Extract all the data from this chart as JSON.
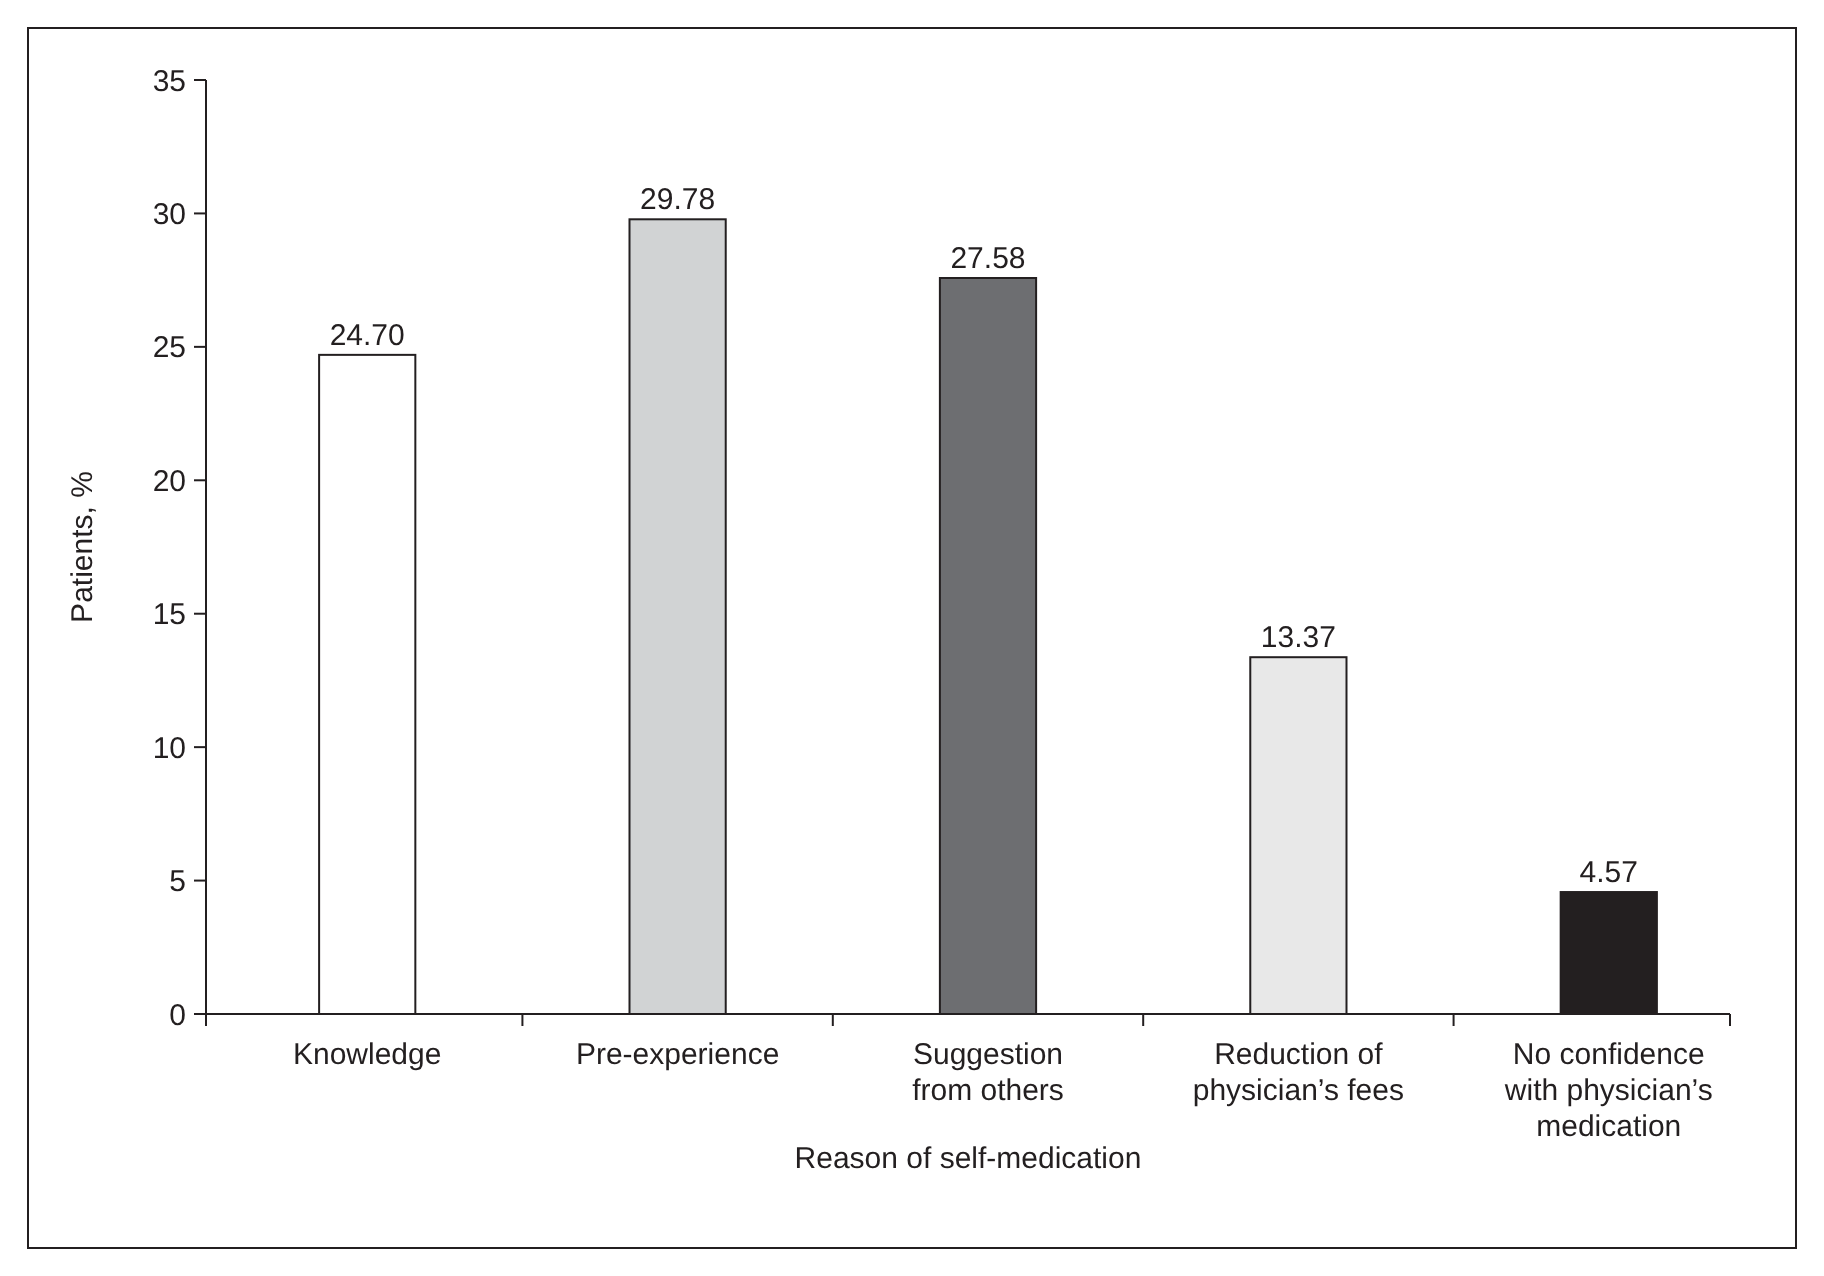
{
  "chart_data": {
    "type": "bar",
    "xlabel": "Reason of self-medication",
    "ylabel": "Patients, %",
    "categories": [
      "Knowledge",
      "Pre-experience",
      "Suggestion\nfrom others",
      "Reduction of\nphysician’s fees",
      "No confidence\nwith physician’s\nmedication"
    ],
    "values": [
      24.7,
      29.78,
      27.58,
      13.37,
      4.57
    ],
    "value_labels": [
      "24.70",
      "29.78",
      "27.58",
      "13.37",
      "4.57"
    ],
    "colors": [
      "#ffffff",
      "#d1d3d4",
      "#6d6e71",
      "#e8e8e8",
      "#231f20"
    ],
    "ylim": [
      0,
      35
    ],
    "yticks": [
      0,
      5,
      10,
      15,
      20,
      25,
      30,
      35
    ],
    "grid": false
  }
}
